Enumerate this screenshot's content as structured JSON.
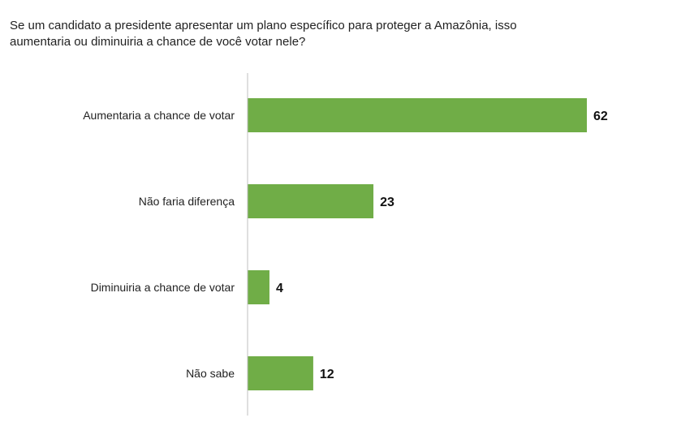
{
  "chart_data": {
    "type": "bar",
    "orientation": "horizontal",
    "title": "Se um candidato a presidente apresentar um plano específico para proteger a Amazônia, isso aumentaria ou diminuiria a chance de você votar nele?",
    "categories": [
      "Aumentaria a chance de votar",
      "Não faria diferença",
      "Diminuiria a chance de votar",
      "Não sabe"
    ],
    "values": [
      62,
      23,
      4,
      12
    ],
    "xlim": [
      0,
      62
    ],
    "grid": false,
    "bar_color": "#70AD47"
  }
}
